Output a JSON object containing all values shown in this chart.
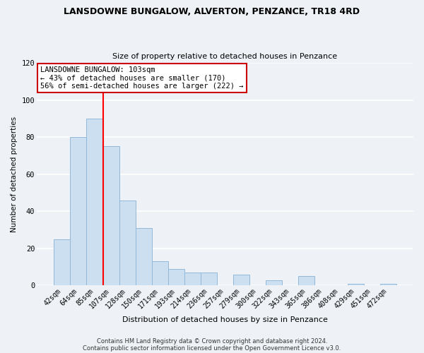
{
  "title": "LANSDOWNE BUNGALOW, ALVERTON, PENZANCE, TR18 4RD",
  "subtitle": "Size of property relative to detached houses in Penzance",
  "xlabel": "Distribution of detached houses by size in Penzance",
  "ylabel": "Number of detached properties",
  "bar_labels": [
    "42sqm",
    "64sqm",
    "85sqm",
    "107sqm",
    "128sqm",
    "150sqm",
    "171sqm",
    "193sqm",
    "214sqm",
    "236sqm",
    "257sqm",
    "279sqm",
    "300sqm",
    "322sqm",
    "343sqm",
    "365sqm",
    "386sqm",
    "408sqm",
    "429sqm",
    "451sqm",
    "472sqm"
  ],
  "bar_values": [
    25,
    80,
    90,
    75,
    46,
    31,
    13,
    9,
    7,
    7,
    0,
    6,
    0,
    3,
    0,
    5,
    0,
    0,
    1,
    0,
    1
  ],
  "bar_color": "#ccdff0",
  "bar_edge_color": "#93b8d8",
  "vline_x": 2.5,
  "vline_color": "red",
  "annotation_title": "LANSDOWNE BUNGALOW: 103sqm",
  "annotation_line1": "← 43% of detached houses are smaller (170)",
  "annotation_line2": "56% of semi-detached houses are larger (222) →",
  "annotation_box_color": "white",
  "annotation_box_edge": "#cc0000",
  "ylim": [
    0,
    120
  ],
  "yticks": [
    0,
    20,
    40,
    60,
    80,
    100,
    120
  ],
  "footer1": "Contains HM Land Registry data © Crown copyright and database right 2024.",
  "footer2": "Contains public sector information licensed under the Open Government Licence v3.0.",
  "bg_color": "#eef2f7",
  "plot_bg_color": "#eef2f7",
  "grid_color": "#ffffff",
  "title_fontsize": 9,
  "subtitle_fontsize": 8,
  "xlabel_fontsize": 8,
  "ylabel_fontsize": 7.5,
  "tick_fontsize": 7,
  "annotation_fontsize": 7.5,
  "footer_fontsize": 6
}
